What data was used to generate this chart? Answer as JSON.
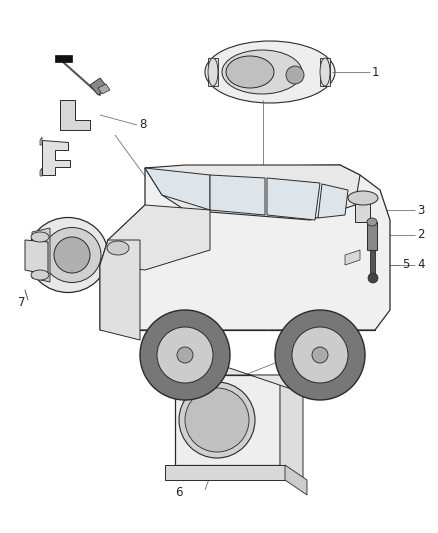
{
  "background_color": "#ffffff",
  "line_color": "#2a2a2a",
  "thin_line": 0.6,
  "med_line": 0.9,
  "thick_line": 1.1,
  "figsize": [
    4.38,
    5.33
  ],
  "dpi": 100,
  "label_fontsize": 8.5,
  "label_color": "#222222",
  "leader_color": "#888888",
  "part_fill": "#f5f5f5",
  "part_edge": "#2a2a2a",
  "car_fill": "#f0f0f0",
  "roof_fill": "#e8e8e8",
  "window_fill": "#d8dce0",
  "wheel_outer": "#555555",
  "wheel_inner": "#cccccc",
  "grille_fill": "#cccccc"
}
